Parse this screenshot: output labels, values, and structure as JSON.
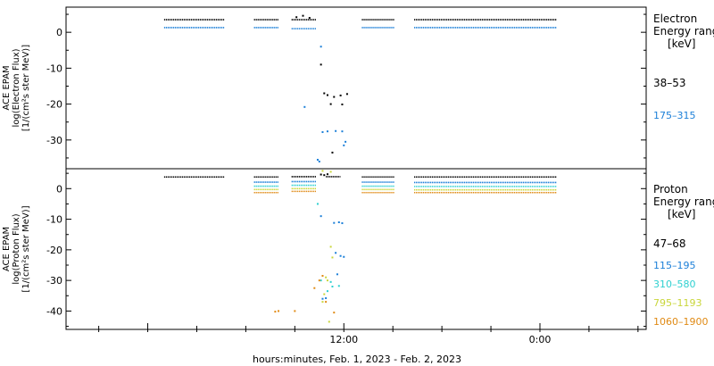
{
  "chart_data": [
    {
      "type": "scatter",
      "panel": "electron",
      "ylabel_lines": [
        "ACE EPAM",
        "log(Electron Flux)",
        "[1/(cm²s ster MeV)]"
      ],
      "legend_title_lines": [
        "Electron",
        "Energy range",
        "[keV]"
      ],
      "y_ticks": [
        0,
        -10,
        -20,
        -30
      ],
      "ylim": [
        -38,
        7
      ],
      "grid": false,
      "legend_placement": "right",
      "series": [
        {
          "name": "38–53",
          "color": "#000000",
          "segments": [
            {
              "x0": 1.0,
              "x1": 4.7,
              "y": 3.5
            },
            {
              "x0": 6.5,
              "x1": 8.0,
              "y": 3.5
            },
            {
              "x0": 8.8,
              "x1": 10.3,
              "y": 3.5
            },
            {
              "x0": 13.1,
              "x1": 15.1,
              "y": 3.5
            },
            {
              "x0": 16.3,
              "x1": 25.0,
              "y": 3.5
            }
          ],
          "points": [
            [
              9.1,
              4.2
            ],
            [
              9.5,
              4.6
            ],
            [
              9.9,
              4.0
            ],
            [
              10.6,
              -9.0
            ],
            [
              10.8,
              -17.0
            ],
            [
              11.0,
              -17.5
            ],
            [
              11.4,
              -18.0
            ],
            [
              11.8,
              -17.6
            ],
            [
              12.2,
              -17.2
            ],
            [
              11.2,
              -20.0
            ],
            [
              11.9,
              -20.1
            ],
            [
              11.3,
              -33.5
            ]
          ]
        },
        {
          "name": "175–315",
          "color": "#1b7fd8",
          "segments": [
            {
              "x0": 1.0,
              "x1": 4.7,
              "y": 1.3
            },
            {
              "x0": 6.5,
              "x1": 8.0,
              "y": 1.3
            },
            {
              "x0": 8.8,
              "x1": 10.3,
              "y": 1.0
            },
            {
              "x0": 13.1,
              "x1": 15.1,
              "y": 1.3
            },
            {
              "x0": 16.3,
              "x1": 25.0,
              "y": 1.3
            }
          ],
          "points": [
            [
              9.6,
              -20.8
            ],
            [
              10.5,
              -36.0
            ],
            [
              10.4,
              -35.5
            ],
            [
              10.6,
              -4.0
            ],
            [
              10.7,
              -27.8
            ],
            [
              11.0,
              -27.6
            ],
            [
              11.5,
              -27.5
            ],
            [
              11.9,
              -27.6
            ],
            [
              12.1,
              -30.5
            ],
            [
              12.0,
              -31.5
            ]
          ]
        }
      ]
    },
    {
      "type": "scatter",
      "panel": "proton",
      "ylabel_lines": [
        "ACE EPAM",
        "log(Proton Flux)",
        "[1/(cm²s ster MeV)]"
      ],
      "legend_title_lines": [
        "Proton",
        "Energy range",
        "[keV]"
      ],
      "y_ticks": [
        0,
        -10,
        -20,
        -30,
        -40
      ],
      "ylim": [
        -46,
        6.5
      ],
      "x_ticks": [
        "12:00",
        "0:00"
      ],
      "xlabel": "hours:minutes, Feb.  1, 2023 - Feb.  2, 2023",
      "grid": false,
      "legend_placement": "right",
      "series": [
        {
          "name": "47–68",
          "color": "#000000",
          "segments": [
            {
              "x0": 1.0,
              "x1": 4.7,
              "y": 3.8
            },
            {
              "x0": 6.5,
              "x1": 8.0,
              "y": 3.8
            },
            {
              "x0": 8.8,
              "x1": 10.3,
              "y": 3.9
            },
            {
              "x0": 10.9,
              "x1": 11.8,
              "y": 3.9
            },
            {
              "x0": 13.1,
              "x1": 15.1,
              "y": 3.8
            },
            {
              "x0": 16.3,
              "x1": 25.0,
              "y": 3.8
            }
          ],
          "points": [
            [
              10.6,
              4.6
            ],
            [
              10.8,
              4.4
            ],
            [
              11.0,
              4.7
            ]
          ]
        },
        {
          "name": "115–195",
          "color": "#1b7fd8",
          "segments": [
            {
              "x0": 6.5,
              "x1": 8.0,
              "y": 2.1
            },
            {
              "x0": 8.8,
              "x1": 10.3,
              "y": 2.3
            },
            {
              "x0": 13.1,
              "x1": 15.1,
              "y": 2.1
            },
            {
              "x0": 16.3,
              "x1": 25.0,
              "y": 2.0
            }
          ],
          "points": [
            [
              10.6,
              -9.0
            ],
            [
              11.4,
              -11.2
            ],
            [
              11.7,
              -11.0
            ],
            [
              11.9,
              -11.3
            ],
            [
              11.5,
              -21.0
            ],
            [
              11.8,
              -22.0
            ],
            [
              12.0,
              -22.3
            ],
            [
              11.6,
              -28.0
            ],
            [
              10.7,
              -36.0
            ],
            [
              10.9,
              -35.8
            ]
          ]
        },
        {
          "name": "310–580",
          "color": "#2ed0d0",
          "segments": [
            {
              "x0": 6.5,
              "x1": 8.0,
              "y": 0.8
            },
            {
              "x0": 8.8,
              "x1": 10.3,
              "y": 1.1
            },
            {
              "x0": 13.1,
              "x1": 15.1,
              "y": 0.8
            },
            {
              "x0": 16.3,
              "x1": 25.0,
              "y": 0.7
            }
          ],
          "points": [
            [
              10.4,
              -5.0
            ],
            [
              10.6,
              -30.0
            ],
            [
              11.2,
              -30.5
            ],
            [
              11.3,
              -32.0
            ],
            [
              11.7,
              -31.8
            ],
            [
              11.0,
              -33.5
            ]
          ]
        },
        {
          "name": "795–1193",
          "color": "#c9d63a",
          "segments": [
            {
              "x0": 6.5,
              "x1": 8.0,
              "y": -0.3
            },
            {
              "x0": 8.8,
              "x1": 10.3,
              "y": 0.0
            },
            {
              "x0": 13.1,
              "x1": 15.1,
              "y": -0.3
            },
            {
              "x0": 16.3,
              "x1": 25.0,
              "y": -0.4
            }
          ],
          "points": [
            [
              10.7,
              5.8
            ],
            [
              11.2,
              5.5
            ],
            [
              11.2,
              -19.0
            ],
            [
              11.3,
              -22.5
            ],
            [
              10.9,
              -29.0
            ],
            [
              11.0,
              -30.0
            ],
            [
              10.8,
              -34.5
            ],
            [
              10.7,
              -37.0
            ],
            [
              11.1,
              -43.5
            ]
          ]
        },
        {
          "name": "1060–1900",
          "color": "#e08a14",
          "segments": [
            {
              "x0": 6.5,
              "x1": 8.0,
              "y": -1.3
            },
            {
              "x0": 8.8,
              "x1": 10.3,
              "y": -0.9
            },
            {
              "x0": 13.1,
              "x1": 15.1,
              "y": -1.3
            },
            {
              "x0": 16.3,
              "x1": 25.0,
              "y": -1.3
            }
          ],
          "points": [
            [
              10.2,
              -32.5
            ],
            [
              10.5,
              -30.0
            ],
            [
              10.7,
              -28.5
            ],
            [
              10.9,
              -37.0
            ],
            [
              11.4,
              -40.5
            ],
            [
              8.0,
              -40.0
            ],
            [
              7.8,
              -40.2
            ],
            [
              9.0,
              -40.0
            ]
          ]
        }
      ]
    }
  ]
}
